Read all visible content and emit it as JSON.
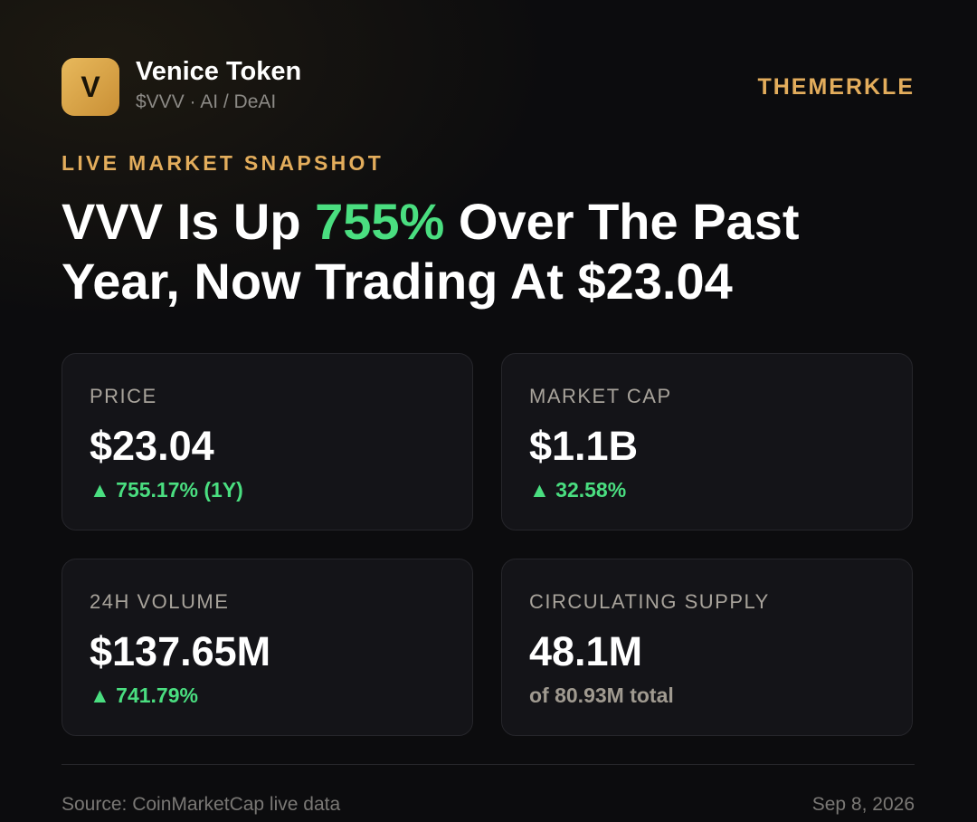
{
  "header": {
    "logo": "V",
    "name": "Venice Token",
    "subtitle": "$VVV · AI / DeAI",
    "brand": "THEMERKLE"
  },
  "eyebrow": "LIVE MARKET SNAPSHOT",
  "headline": {
    "before": "VVV Is Up ",
    "highlight": "755%",
    "after": " Over The Past Year, Now Trading At $23.04"
  },
  "cards": [
    {
      "label": "PRICE",
      "value": "$23.04",
      "change": "▲ 755.17% (1Y)"
    },
    {
      "label": "MARKET CAP",
      "value": "$1.1B",
      "change": "▲ 32.58%"
    },
    {
      "label": "24H VOLUME",
      "value": "$137.65M",
      "change": "▲ 741.79%"
    },
    {
      "label": "CIRCULATING SUPPLY",
      "value": "48.1M",
      "change": "of 80.93M total"
    }
  ],
  "footer": {
    "source": "Source: CoinMarketCap live data",
    "date": "Sep 8, 2026"
  }
}
